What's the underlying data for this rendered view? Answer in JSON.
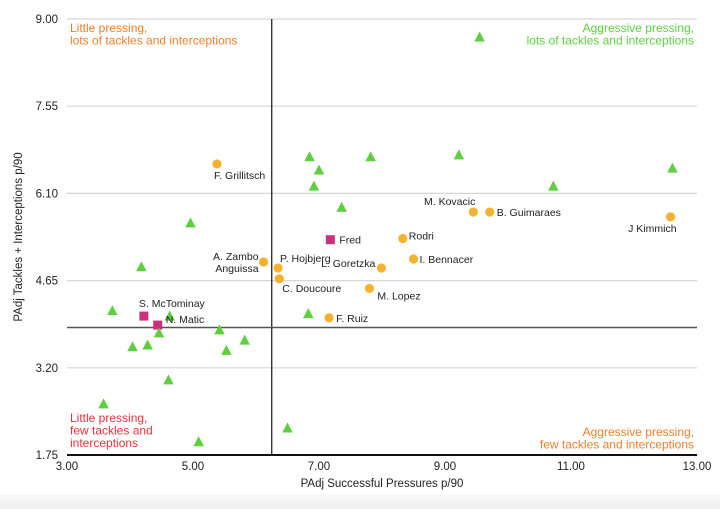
{
  "chart_data": {
    "type": "scatter",
    "title": "",
    "xlabel": "PAdj Successful Pressures p/90",
    "ylabel": "PAdj Tackles + Interceptions p/90",
    "xlim": [
      3.0,
      13.0
    ],
    "ylim": [
      1.75,
      9.0
    ],
    "xticks": [
      "3.00",
      "5.00",
      "7.00",
      "9.00",
      "11.00",
      "13.00"
    ],
    "xtick_values": [
      3,
      5,
      7,
      9,
      11,
      13
    ],
    "yticks": [
      "9.00",
      "7.55",
      "6.10",
      "4.65",
      "3.20",
      "1.75"
    ],
    "ytick_values": [
      9.0,
      7.55,
      6.1,
      4.65,
      3.2,
      1.75
    ],
    "grid": "horizontal",
    "reference_lines": {
      "x": 6.25,
      "y": 3.87
    },
    "quadrant_labels": [
      {
        "position": "top-left",
        "lines": [
          "Little pressing,",
          "lots of tackles and interceptions"
        ],
        "color": "#f07f2a"
      },
      {
        "position": "top-right",
        "lines": [
          "Aggressive pressing,",
          "lots of tackles and interceptions"
        ],
        "color": "#5ecf3e"
      },
      {
        "position": "bottom-left",
        "lines": [
          "Little pressing,",
          "few tackles and",
          "interceptions"
        ],
        "color": "#e8313a"
      },
      {
        "position": "bottom-right",
        "lines": [
          "Aggressive pressing,",
          "few tackles and interceptions"
        ],
        "color": "#f07f2a"
      }
    ],
    "series": [
      {
        "name": "highlighted",
        "marker": "square",
        "color": "#cc2f7d",
        "points": [
          {
            "label": "Fred",
            "x": 7.18,
            "y": 5.33
          },
          {
            "label": "S. McTominay",
            "x": 4.22,
            "y": 4.06
          },
          {
            "label": "N. Matic",
            "x": 4.44,
            "y": 3.91
          }
        ]
      },
      {
        "name": "midfielders",
        "marker": "circle",
        "color": "#f5b22e",
        "points": [
          {
            "label": "F. Grillitsch",
            "x": 5.38,
            "y": 6.59
          },
          {
            "label": "A. Zambo Anguissa",
            "x": 6.12,
            "y": 4.96
          },
          {
            "label": "P. Hojbjerg",
            "x": 6.35,
            "y": 4.86
          },
          {
            "label": "C. Doucoure",
            "x": 6.37,
            "y": 4.68
          },
          {
            "label": "L. Goretzka",
            "x": 7.99,
            "y": 4.86
          },
          {
            "label": "M. Lopez",
            "x": 7.8,
            "y": 4.52
          },
          {
            "label": "F. Ruiz",
            "x": 7.16,
            "y": 4.03
          },
          {
            "label": "Rodri",
            "x": 8.33,
            "y": 5.35
          },
          {
            "label": "I. Bennacer",
            "x": 8.5,
            "y": 5.01
          },
          {
            "label": "M. Kovacic",
            "x": 9.45,
            "y": 5.79
          },
          {
            "label": "B. Guimaraes",
            "x": 9.71,
            "y": 5.79
          },
          {
            "label": "J Kimmich",
            "x": 12.58,
            "y": 5.71
          }
        ]
      },
      {
        "name": "others",
        "marker": "triangle",
        "color": "#5ecf3e",
        "points": [
          {
            "label": "",
            "x": 9.55,
            "y": 8.7
          },
          {
            "label": "",
            "x": 6.85,
            "y": 6.71
          },
          {
            "label": "",
            "x": 7.0,
            "y": 6.49
          },
          {
            "label": "",
            "x": 6.92,
            "y": 6.22
          },
          {
            "label": "",
            "x": 7.82,
            "y": 6.71
          },
          {
            "label": "",
            "x": 9.22,
            "y": 6.74
          },
          {
            "label": "",
            "x": 10.72,
            "y": 6.22
          },
          {
            "label": "",
            "x": 12.61,
            "y": 6.52
          },
          {
            "label": "",
            "x": 7.36,
            "y": 5.87
          },
          {
            "label": "",
            "x": 4.96,
            "y": 5.61
          },
          {
            "label": "",
            "x": 4.18,
            "y": 4.88
          },
          {
            "label": "",
            "x": 3.72,
            "y": 4.15
          },
          {
            "label": "",
            "x": 4.63,
            "y": 4.06
          },
          {
            "label": "",
            "x": 6.83,
            "y": 4.1
          },
          {
            "label": "",
            "x": 4.46,
            "y": 3.78
          },
          {
            "label": "",
            "x": 5.42,
            "y": 3.83
          },
          {
            "label": "",
            "x": 5.82,
            "y": 3.66
          },
          {
            "label": "",
            "x": 4.04,
            "y": 3.55
          },
          {
            "label": "",
            "x": 4.28,
            "y": 3.58
          },
          {
            "label": "",
            "x": 5.53,
            "y": 3.49
          },
          {
            "label": "",
            "x": 4.61,
            "y": 3.0
          },
          {
            "label": "",
            "x": 3.58,
            "y": 2.6
          },
          {
            "label": "",
            "x": 6.5,
            "y": 2.2
          },
          {
            "label": "",
            "x": 5.09,
            "y": 1.97
          }
        ]
      }
    ]
  }
}
